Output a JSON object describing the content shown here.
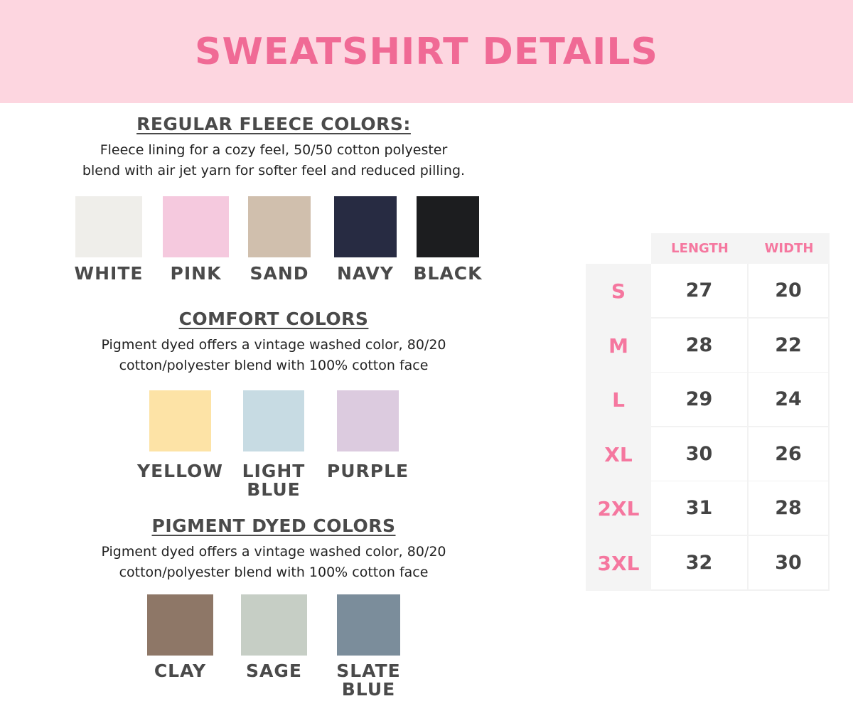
{
  "header": {
    "title": "SWEATSHIRT DETAILS",
    "background": "#fdd6e0",
    "color": "#f06a95"
  },
  "sections": [
    {
      "title": "REGULAR FLEECE COLORS:",
      "description": [
        "Fleece lining for a cozy feel, 50/50 cotton polyester",
        "blend with air jet yarn for softer feel and reduced pilling."
      ],
      "colors": [
        {
          "name": "WHITE",
          "hex": "#efeeea"
        },
        {
          "name": "PINK",
          "hex": "#f5c9de"
        },
        {
          "name": "SAND",
          "hex": "#d0bfad"
        },
        {
          "name": "NAVY",
          "hex": "#272b42"
        },
        {
          "name": "BLACK",
          "hex": "#1c1d1f"
        }
      ]
    },
    {
      "title": "COMFORT COLORS",
      "description": [
        "Pigment dyed offers a vintage washed color, 80/20",
        "cotton/polyester blend with 100% cotton face"
      ],
      "colors": [
        {
          "name": "YELLOW",
          "hex": "#fde3a6"
        },
        {
          "name": "LIGHT BLUE",
          "hex": "#c7dbe3"
        },
        {
          "name": "PURPLE",
          "hex": "#dccbdf"
        }
      ]
    },
    {
      "title": "PIGMENT DYED COLORS",
      "description": [
        "Pigment dyed offers a vintage washed color, 80/20",
        "cotton/polyester blend with 100% cotton face"
      ],
      "colors": [
        {
          "name": "CLAY",
          "hex": "#8e7767"
        },
        {
          "name": "SAGE",
          "hex": "#c6cec5"
        },
        {
          "name": "SLATE BLUE",
          "hex": "#7b8d9b"
        }
      ]
    }
  ],
  "size_chart": {
    "columns": [
      "LENGTH",
      "WIDTH"
    ],
    "rows": [
      {
        "size": "S",
        "length": "27",
        "width": "20"
      },
      {
        "size": "M",
        "length": "28",
        "width": "22"
      },
      {
        "size": "L",
        "length": "29",
        "width": "24"
      },
      {
        "size": "XL",
        "length": "30",
        "width": "26"
      },
      {
        "size": "2XL",
        "length": "31",
        "width": "28"
      },
      {
        "size": "3XL",
        "length": "32",
        "width": "30"
      }
    ]
  }
}
